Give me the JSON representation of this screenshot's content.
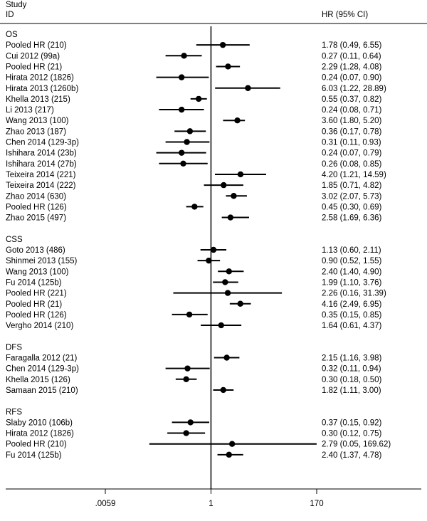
{
  "chart_data": {
    "type": "forest",
    "header": {
      "study_label": "Study",
      "id_label": "ID",
      "effect_label": "HR (95% CI)"
    },
    "x_scale": "log",
    "xlim": [
      0.0059,
      170
    ],
    "xticks": [
      ".0059",
      "1",
      "170"
    ],
    "reference_line": 1,
    "groups": [
      {
        "name": "OS",
        "rows": [
          {
            "id": "Pooled HR (210)",
            "hr": 1.78,
            "lo": 0.49,
            "hi": 6.55,
            "ci": "1.78 (0.49, 6.55)"
          },
          {
            "id": "Cui 2012 (99a)",
            "hr": 0.27,
            "lo": 0.11,
            "hi": 0.64,
            "ci": "0.27 (0.11, 0.64)"
          },
          {
            "id": "Pooled HR (21)",
            "hr": 2.29,
            "lo": 1.28,
            "hi": 4.08,
            "ci": "2.29 (1.28, 4.08)"
          },
          {
            "id": "Hirata 2012 (1826)",
            "hr": 0.24,
            "lo": 0.07,
            "hi": 0.9,
            "ci": "0.24 (0.07, 0.90)"
          },
          {
            "id": "Hirata 2013 (1260b)",
            "hr": 6.03,
            "lo": 1.22,
            "hi": 28.89,
            "ci": "6.03 (1.22, 28.89)"
          },
          {
            "id": "Khella 2013 (215)",
            "hr": 0.55,
            "lo": 0.37,
            "hi": 0.82,
            "ci": "0.55 (0.37, 0.82)"
          },
          {
            "id": "Li 2013 (217)",
            "hr": 0.24,
            "lo": 0.08,
            "hi": 0.71,
            "ci": "0.24 (0.08, 0.71)"
          },
          {
            "id": "Wang 2013 (100)",
            "hr": 3.6,
            "lo": 1.8,
            "hi": 5.2,
            "ci": "3.60 (1.80, 5.20)"
          },
          {
            "id": "Zhao 2013 (187)",
            "hr": 0.36,
            "lo": 0.17,
            "hi": 0.78,
            "ci": "0.36 (0.17, 0.78)"
          },
          {
            "id": "Chen 2014 (129-3p)",
            "hr": 0.31,
            "lo": 0.11,
            "hi": 0.93,
            "ci": "0.31 (0.11, 0.93)"
          },
          {
            "id": "Ishihara 2014 (23b)",
            "hr": 0.24,
            "lo": 0.07,
            "hi": 0.79,
            "ci": "0.24 (0.07, 0.79)"
          },
          {
            "id": "Ishihara 2014 (27b)",
            "hr": 0.26,
            "lo": 0.08,
            "hi": 0.85,
            "ci": "0.26 (0.08, 0.85)"
          },
          {
            "id": "Teixeira 2014 (221)",
            "hr": 4.2,
            "lo": 1.21,
            "hi": 14.59,
            "ci": "4.20 (1.21, 14.59)"
          },
          {
            "id": "Teixeira 2014 (222)",
            "hr": 1.85,
            "lo": 0.71,
            "hi": 4.82,
            "ci": "1.85 (0.71, 4.82)"
          },
          {
            "id": "Zhao 2014 (630)",
            "hr": 3.02,
            "lo": 2.07,
            "hi": 5.73,
            "ci": "3.02 (2.07, 5.73)"
          },
          {
            "id": "Pooled HR (126)",
            "hr": 0.45,
            "lo": 0.3,
            "hi": 0.69,
            "ci": "0.45 (0.30, 0.69)"
          },
          {
            "id": "Zhao 2015 (497)",
            "hr": 2.58,
            "lo": 1.69,
            "hi": 6.36,
            "ci": "2.58 (1.69, 6.36)"
          }
        ]
      },
      {
        "name": "CSS",
        "rows": [
          {
            "id": "Goto 2013 (486)",
            "hr": 1.13,
            "lo": 0.6,
            "hi": 2.11,
            "ci": "1.13 (0.60, 2.11)"
          },
          {
            "id": "Shinmei 2013 (155)",
            "hr": 0.9,
            "lo": 0.52,
            "hi": 1.55,
            "ci": "0.90 (0.52, 1.55)"
          },
          {
            "id": "Wang 2013 (100)",
            "hr": 2.4,
            "lo": 1.4,
            "hi": 4.9,
            "ci": "2.40 (1.40, 4.90)"
          },
          {
            "id": "Fu 2014 (125b)",
            "hr": 1.99,
            "lo": 1.1,
            "hi": 3.76,
            "ci": "1.99 (1.10, 3.76)"
          },
          {
            "id": "Pooled HR (221)",
            "hr": 2.26,
            "lo": 0.16,
            "hi": 31.39,
            "ci": "2.26 (0.16, 31.39)"
          },
          {
            "id": "Pooled HR (21)",
            "hr": 4.16,
            "lo": 2.49,
            "hi": 6.95,
            "ci": "4.16 (2.49, 6.95)"
          },
          {
            "id": "Pooled HR (126)",
            "hr": 0.35,
            "lo": 0.15,
            "hi": 0.85,
            "ci": "0.35 (0.15, 0.85)"
          },
          {
            "id": "Vergho 2014 (210)",
            "hr": 1.64,
            "lo": 0.61,
            "hi": 4.37,
            "ci": "1.64 (0.61, 4.37)"
          }
        ]
      },
      {
        "name": "DFS",
        "rows": [
          {
            "id": "Faragalla 2012 (21)",
            "hr": 2.15,
            "lo": 1.16,
            "hi": 3.98,
            "ci": "2.15 (1.16, 3.98)"
          },
          {
            "id": "Chen 2014 (129-3p)",
            "hr": 0.32,
            "lo": 0.11,
            "hi": 0.94,
            "ci": "0.32 (0.11, 0.94)"
          },
          {
            "id": "Khella 2015 (126)",
            "hr": 0.3,
            "lo": 0.18,
            "hi": 0.5,
            "ci": "0.30 (0.18, 0.50)"
          },
          {
            "id": "Samaan 2015 (210)",
            "hr": 1.82,
            "lo": 1.11,
            "hi": 3.0,
            "ci": "1.82 (1.11, 3.00)"
          }
        ]
      },
      {
        "name": "RFS",
        "rows": [
          {
            "id": "Slaby 2010 (106b)",
            "hr": 0.37,
            "lo": 0.15,
            "hi": 0.92,
            "ci": "0.37 (0.15, 0.92)"
          },
          {
            "id": "Hirata 2012 (1826)",
            "hr": 0.3,
            "lo": 0.12,
            "hi": 0.75,
            "ci": "0.30 (0.12, 0.75)"
          },
          {
            "id": "Pooled HR (210)",
            "hr": 2.79,
            "lo": 0.05,
            "hi": 169.62,
            "ci": "2.79 (0.05, 169.62)"
          },
          {
            "id": "Fu 2014 (125b)",
            "hr": 2.4,
            "lo": 1.37,
            "hi": 4.78,
            "ci": "2.40 (1.37, 4.78)"
          }
        ]
      }
    ]
  }
}
